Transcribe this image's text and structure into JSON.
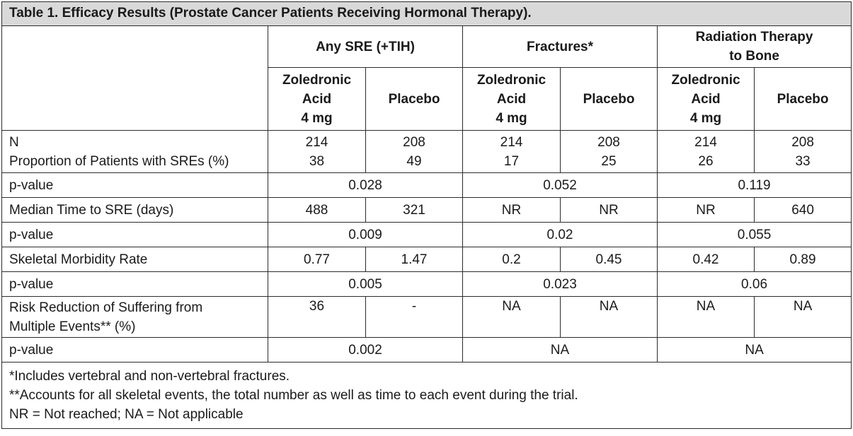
{
  "caption": "Table 1. Efficacy Results (Prostate Cancer Patients Receiving Hormonal Therapy).",
  "groups": [
    "Any SRE (+TIH)",
    "Fractures*",
    "Radiation Therapy to Bone"
  ],
  "group3_line1": "Radiation Therapy",
  "group3_line2": "to Bone",
  "subheaders": {
    "zol_line1": "Zoledronic",
    "zol_line2": "Acid",
    "zol_line3": "4 mg",
    "placebo": "Placebo"
  },
  "rows": {
    "n_label": "N",
    "prop_label": "Proportion of Patients with SREs (%)",
    "n_values": [
      "214",
      "208",
      "214",
      "208",
      "214",
      "208"
    ],
    "prop_values": [
      "38",
      "49",
      "17",
      "25",
      "26",
      "33"
    ],
    "p1_label": "p-value",
    "p1_values": [
      "0.028",
      "0.052",
      "0.119"
    ],
    "median_label": "Median Time to SRE (days)",
    "median_values": [
      "488",
      "321",
      "NR",
      "NR",
      "NR",
      "640"
    ],
    "p2_label": "p-value",
    "p2_values": [
      "0.009",
      "0.02",
      "0.055"
    ],
    "smr_label": "Skeletal Morbidity Rate",
    "smr_values": [
      "0.77",
      "1.47",
      "0.2",
      "0.45",
      "0.42",
      "0.89"
    ],
    "p3_label": "p-value",
    "p3_values": [
      "0.005",
      "0.023",
      "0.06"
    ],
    "risk_label_line1": "Risk Reduction of Suffering from",
    "risk_label_line2": "Multiple Events** (%)",
    "risk_values": [
      "36",
      "-",
      "NA",
      "NA",
      "NA",
      "NA"
    ],
    "p4_label": "p-value",
    "p4_values": [
      "0.002",
      "NA",
      "NA"
    ]
  },
  "footnotes": [
    "*Includes vertebral and non-vertebral fractures.",
    "**Accounts for all skeletal events, the total number as well as time to each event during the trial.",
    "NR = Not reached; NA = Not applicable"
  ]
}
